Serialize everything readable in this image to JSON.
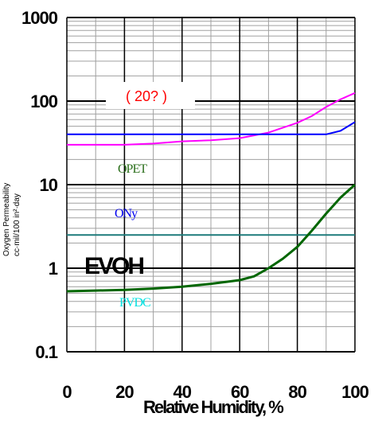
{
  "chart_data": {
    "type": "line",
    "xlabel": "Relative Humidity, %",
    "ylabel_lines": [
      "Oxygen Permeability",
      "cc·mil/100 in²·day"
    ],
    "x_ticks": [
      "0",
      "20",
      "40",
      "60",
      "80",
      "100"
    ],
    "y_ticks": [
      "0.1",
      "1",
      "10",
      "100",
      "1000"
    ],
    "xlim": [
      0,
      100
    ],
    "ylim": [
      0.1,
      1000
    ],
    "y_scale": "log",
    "grid": true,
    "boxed_label": "( 20? )",
    "series": [
      {
        "name": "OPET",
        "label": "OPET",
        "color": "#ff00ff",
        "x": [
          0,
          10,
          20,
          30,
          40,
          50,
          60,
          70,
          80,
          85,
          90,
          95,
          100
        ],
        "y": [
          30,
          30,
          30,
          31,
          33,
          34,
          36,
          42,
          55,
          66,
          85,
          105,
          125
        ]
      },
      {
        "name": "ONy",
        "label": "ONy",
        "color": "#0000ff",
        "x": [
          0,
          20,
          40,
          60,
          80,
          90,
          95,
          100
        ],
        "y": [
          40,
          40,
          40,
          40,
          40,
          40,
          44,
          56
        ]
      },
      {
        "name": "PVDC",
        "label": "PVDC",
        "color": "#1e7b7b",
        "x": [
          0,
          100
        ],
        "y": [
          2.5,
          2.5
        ]
      },
      {
        "name": "EVOH",
        "label": "EVOH",
        "color": "#006600",
        "x": [
          0,
          10,
          20,
          30,
          40,
          50,
          60,
          65,
          70,
          75,
          80,
          85,
          90,
          95,
          100
        ],
        "y": [
          0.53,
          0.54,
          0.55,
          0.57,
          0.6,
          0.65,
          0.72,
          0.8,
          1.0,
          1.3,
          1.8,
          2.8,
          4.5,
          7,
          10
        ]
      }
    ]
  }
}
